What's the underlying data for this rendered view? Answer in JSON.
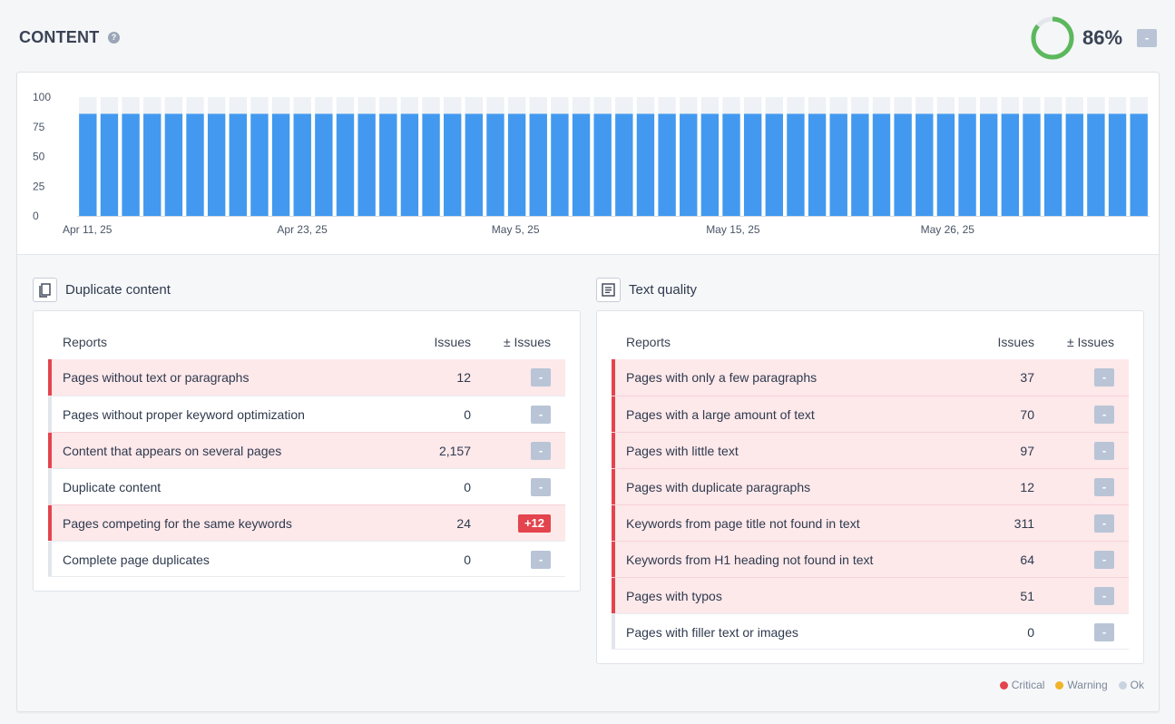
{
  "header": {
    "title": "CONTENT",
    "help_icon": "question-circle-icon",
    "score": "86%",
    "score_value": 86,
    "score_delta": "-",
    "colors": {
      "ok": "#5cb85c",
      "track": "#e3e6ea"
    }
  },
  "chart_data": {
    "type": "bar",
    "stacked": true,
    "y_ticks": [
      "100",
      "75",
      "50",
      "25",
      "0"
    ],
    "ylim": [
      0,
      100
    ],
    "x_tick_labels": [
      "Apr 11, 25",
      "Apr 23, 25",
      "May 5, 25",
      "May 15, 25",
      "May 26, 25"
    ],
    "x_tick_positions": [
      0,
      10,
      20,
      30,
      40
    ],
    "bar_count": 50,
    "series": [
      {
        "values": [
          86,
          86,
          86,
          86,
          86,
          86,
          86,
          86,
          86,
          86,
          86,
          86,
          86,
          86,
          86,
          86,
          86,
          86,
          86,
          86,
          86,
          86,
          86,
          86,
          86,
          86,
          86,
          86,
          86,
          86,
          86,
          86,
          86,
          86,
          86,
          86,
          86,
          86,
          86,
          86,
          86,
          86,
          86,
          86,
          86,
          86,
          86,
          86,
          86,
          86
        ],
        "color": "#4299ef"
      },
      {
        "values": [
          14,
          14,
          14,
          14,
          14,
          14,
          14,
          14,
          14,
          14,
          14,
          14,
          14,
          14,
          14,
          14,
          14,
          14,
          14,
          14,
          14,
          14,
          14,
          14,
          14,
          14,
          14,
          14,
          14,
          14,
          14,
          14,
          14,
          14,
          14,
          14,
          14,
          14,
          14,
          14,
          14,
          14,
          14,
          14,
          14,
          14,
          14,
          14,
          14,
          14
        ],
        "color": "#eef1f5"
      }
    ],
    "grid": false
  },
  "duplicate": {
    "title": "Duplicate content",
    "icon": "copy-icon",
    "col_reports": "Reports",
    "col_issues": "Issues",
    "col_delta": "± Issues",
    "rows": [
      {
        "name": "Pages without text or paragraphs",
        "issues": "12",
        "delta": "-",
        "status": "critical"
      },
      {
        "name": "Pages without proper keyword optimization",
        "issues": "0",
        "delta": "-",
        "status": "ok"
      },
      {
        "name": "Content that appears on several pages",
        "issues": "2,157",
        "delta": "-",
        "status": "critical"
      },
      {
        "name": "Duplicate content",
        "issues": "0",
        "delta": "-",
        "status": "ok"
      },
      {
        "name": "Pages competing for the same keywords",
        "issues": "24",
        "delta": "+12",
        "status": "critical"
      },
      {
        "name": "Complete page duplicates",
        "issues": "0",
        "delta": "-",
        "status": "ok"
      }
    ]
  },
  "text_quality": {
    "title": "Text quality",
    "icon": "document-lines-icon",
    "col_reports": "Reports",
    "col_issues": "Issues",
    "col_delta": "± Issues",
    "rows": [
      {
        "name": "Pages with only a few paragraphs",
        "issues": "37",
        "delta": "-",
        "status": "critical"
      },
      {
        "name": "Pages with a large amount of text",
        "issues": "70",
        "delta": "-",
        "status": "critical"
      },
      {
        "name": "Pages with little text",
        "issues": "97",
        "delta": "-",
        "status": "critical"
      },
      {
        "name": "Pages with duplicate paragraphs",
        "issues": "12",
        "delta": "-",
        "status": "critical"
      },
      {
        "name": "Keywords from page title not found in text",
        "issues": "311",
        "delta": "-",
        "status": "critical"
      },
      {
        "name": "Keywords from H1 heading not found in text",
        "issues": "64",
        "delta": "-",
        "status": "critical"
      },
      {
        "name": "Pages with typos",
        "issues": "51",
        "delta": "-",
        "status": "critical"
      },
      {
        "name": "Pages with filler text or images",
        "issues": "0",
        "delta": "-",
        "status": "ok"
      }
    ]
  },
  "legend": [
    {
      "label": "Critical",
      "color": "#e3444d"
    },
    {
      "label": "Warning",
      "color": "#f0b429"
    },
    {
      "label": "Ok",
      "color": "#c9d3e0"
    }
  ]
}
